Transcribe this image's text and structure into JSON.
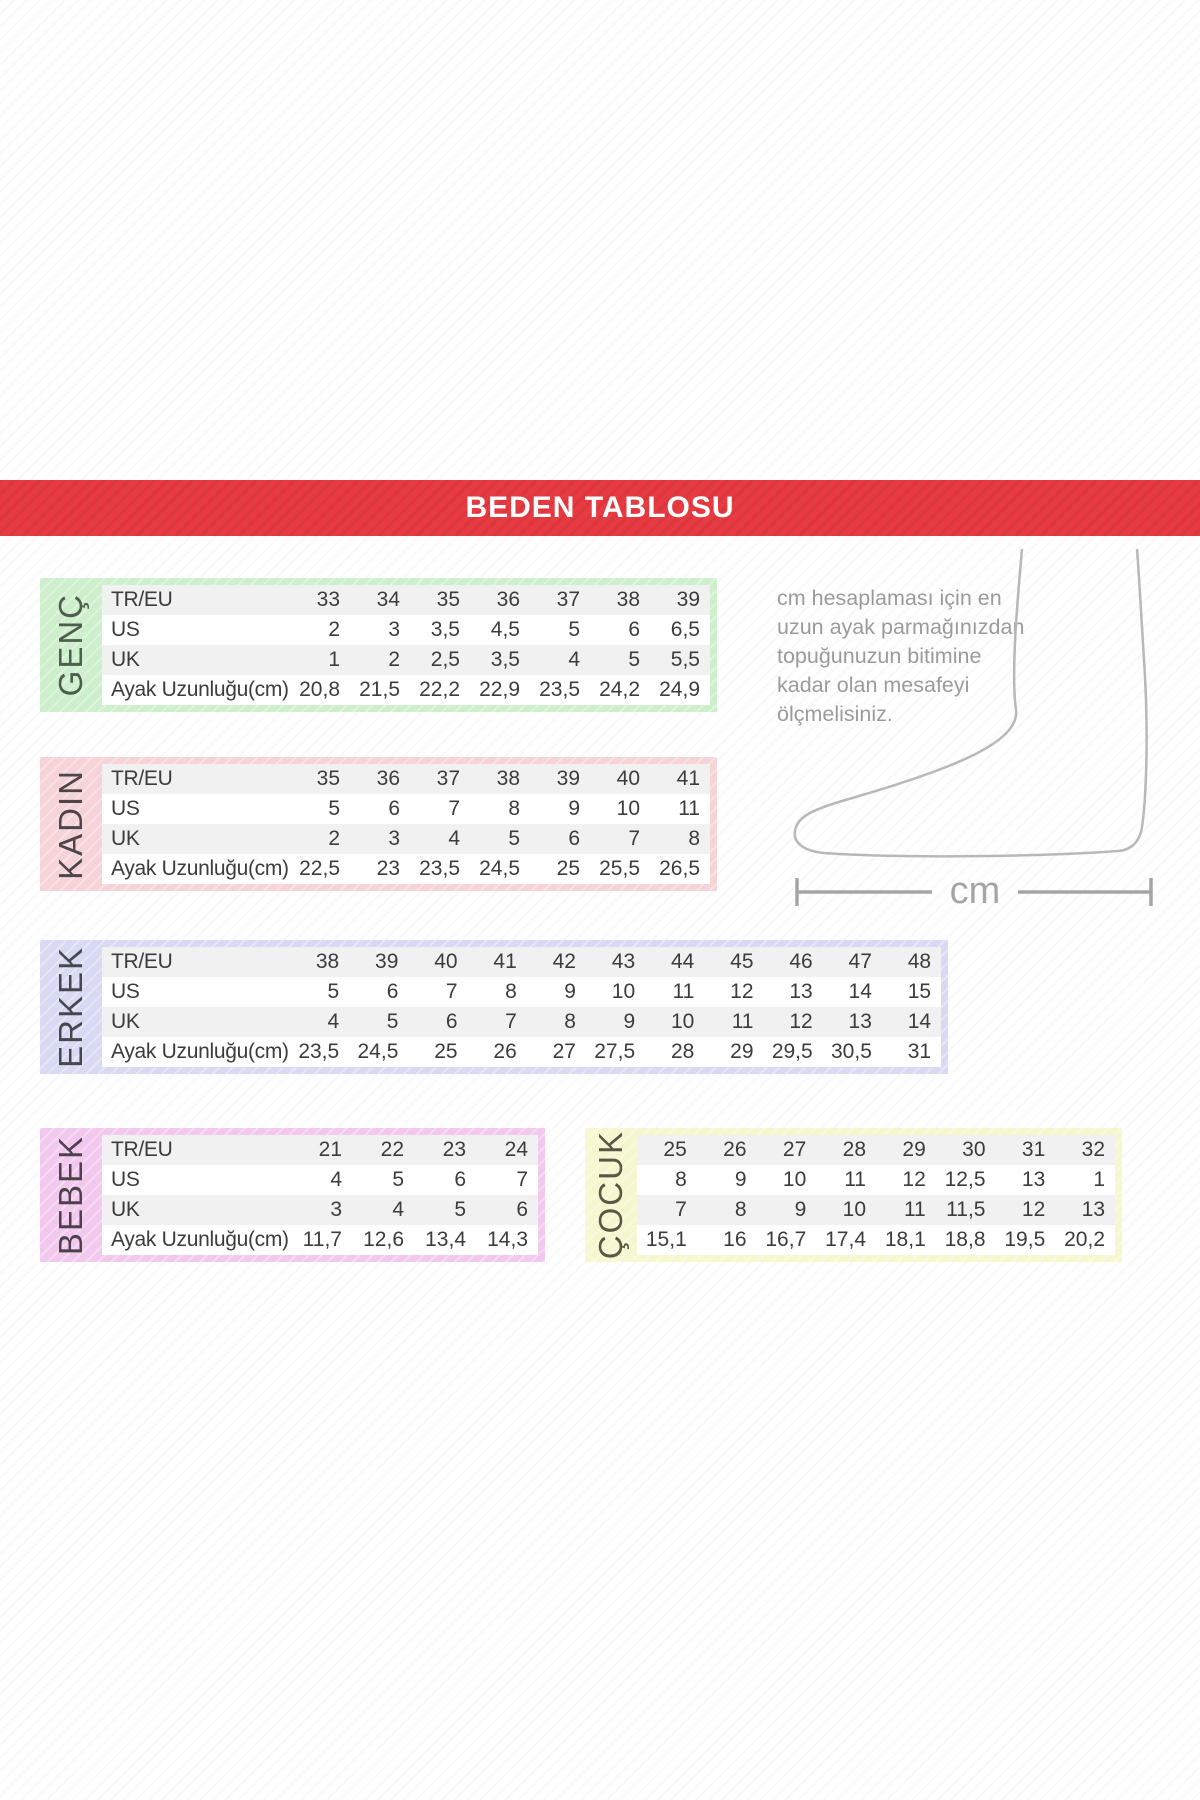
{
  "banner": {
    "title": "BEDEN TABLOSU",
    "color": "#e73a41"
  },
  "info": {
    "measure_text": "cm hesaplaması için en\nuzun ayak parmağınızdan\ntopuğunuzun bitimine\nkadar olan mesafeyi\nölçmelisiniz.",
    "cm_label": "cm"
  },
  "tables": [
    {
      "label": "GENÇ",
      "tint": "#cdefcb",
      "label_color": "#4c5f4c",
      "row_labels": true,
      "rows": [
        {
          "label": "TR/EU",
          "values": [
            "33",
            "34",
            "35",
            "36",
            "37",
            "38",
            "39"
          ]
        },
        {
          "label": "US",
          "values": [
            "2",
            "3",
            "3,5",
            "4,5",
            "5",
            "6",
            "6,5"
          ]
        },
        {
          "label": "UK",
          "values": [
            "1",
            "2",
            "2,5",
            "3,5",
            "4",
            "5",
            "5,5"
          ]
        },
        {
          "label": "Ayak Uzunluğu(cm)",
          "values": [
            "20,8",
            "21,5",
            "22,2",
            "22,9",
            "23,5",
            "24,2",
            "24,9"
          ]
        }
      ]
    },
    {
      "label": "KADIN",
      "tint": "#f6d3d7",
      "label_color": "#4d4547",
      "row_labels": true,
      "rows": [
        {
          "label": "TR/EU",
          "values": [
            "35",
            "36",
            "37",
            "38",
            "39",
            "40",
            "41"
          ]
        },
        {
          "label": "US",
          "values": [
            "5",
            "6",
            "7",
            "8",
            "9",
            "10",
            "11"
          ]
        },
        {
          "label": "UK",
          "values": [
            "2",
            "3",
            "4",
            "5",
            "6",
            "7",
            "8"
          ]
        },
        {
          "label": "Ayak Uzunluğu(cm)",
          "values": [
            "22,5",
            "23",
            "23,5",
            "24,5",
            "25",
            "25,5",
            "26,5"
          ]
        }
      ]
    },
    {
      "label": "ERKEK",
      "tint": "#d8d9f2",
      "label_color": "#474750",
      "row_labels": true,
      "rows": [
        {
          "label": "TR/EU",
          "values": [
            "38",
            "39",
            "40",
            "41",
            "42",
            "43",
            "44",
            "45",
            "46",
            "47",
            "48"
          ]
        },
        {
          "label": "US",
          "values": [
            "5",
            "6",
            "7",
            "8",
            "9",
            "10",
            "11",
            "12",
            "13",
            "14",
            "15"
          ]
        },
        {
          "label": "UK",
          "values": [
            "4",
            "5",
            "6",
            "7",
            "8",
            "9",
            "10",
            "11",
            "12",
            "13",
            "14"
          ]
        },
        {
          "label": "Ayak Uzunluğu(cm)",
          "values": [
            "23,5",
            "24,5",
            "25",
            "26",
            "27",
            "27,5",
            "28",
            "29",
            "29,5",
            "30,5",
            "31"
          ]
        }
      ]
    },
    {
      "label": "BEBEK",
      "tint": "#f2c8ef",
      "label_color": "#4e404d",
      "row_labels": true,
      "rows": [
        {
          "label": "TR/EU",
          "values": [
            "21",
            "22",
            "23",
            "24"
          ]
        },
        {
          "label": "US",
          "values": [
            "4",
            "5",
            "6",
            "7"
          ]
        },
        {
          "label": "UK",
          "values": [
            "3",
            "4",
            "5",
            "6"
          ]
        },
        {
          "label": "Ayak Uzunluğu(cm)",
          "values": [
            "11,7",
            "12,6",
            "13,4",
            "14,3"
          ]
        }
      ]
    },
    {
      "label": "ÇOCUK",
      "tint": "#f6f6cf",
      "label_color": "#585844",
      "row_labels": false,
      "rows": [
        {
          "label": "TR/EU",
          "values": [
            "25",
            "26",
            "27",
            "28",
            "29",
            "30",
            "31",
            "32"
          ]
        },
        {
          "label": "US",
          "values": [
            "8",
            "9",
            "10",
            "11",
            "12",
            "12,5",
            "13",
            "1"
          ]
        },
        {
          "label": "UK",
          "values": [
            "7",
            "8",
            "9",
            "10",
            "11",
            "11,5",
            "12",
            "13"
          ]
        },
        {
          "label": "Ayak Uzunluğu(cm)",
          "values": [
            "15,1",
            "16",
            "16,7",
            "17,4",
            "18,1",
            "18,8",
            "19,5",
            "20,2"
          ]
        }
      ]
    }
  ]
}
